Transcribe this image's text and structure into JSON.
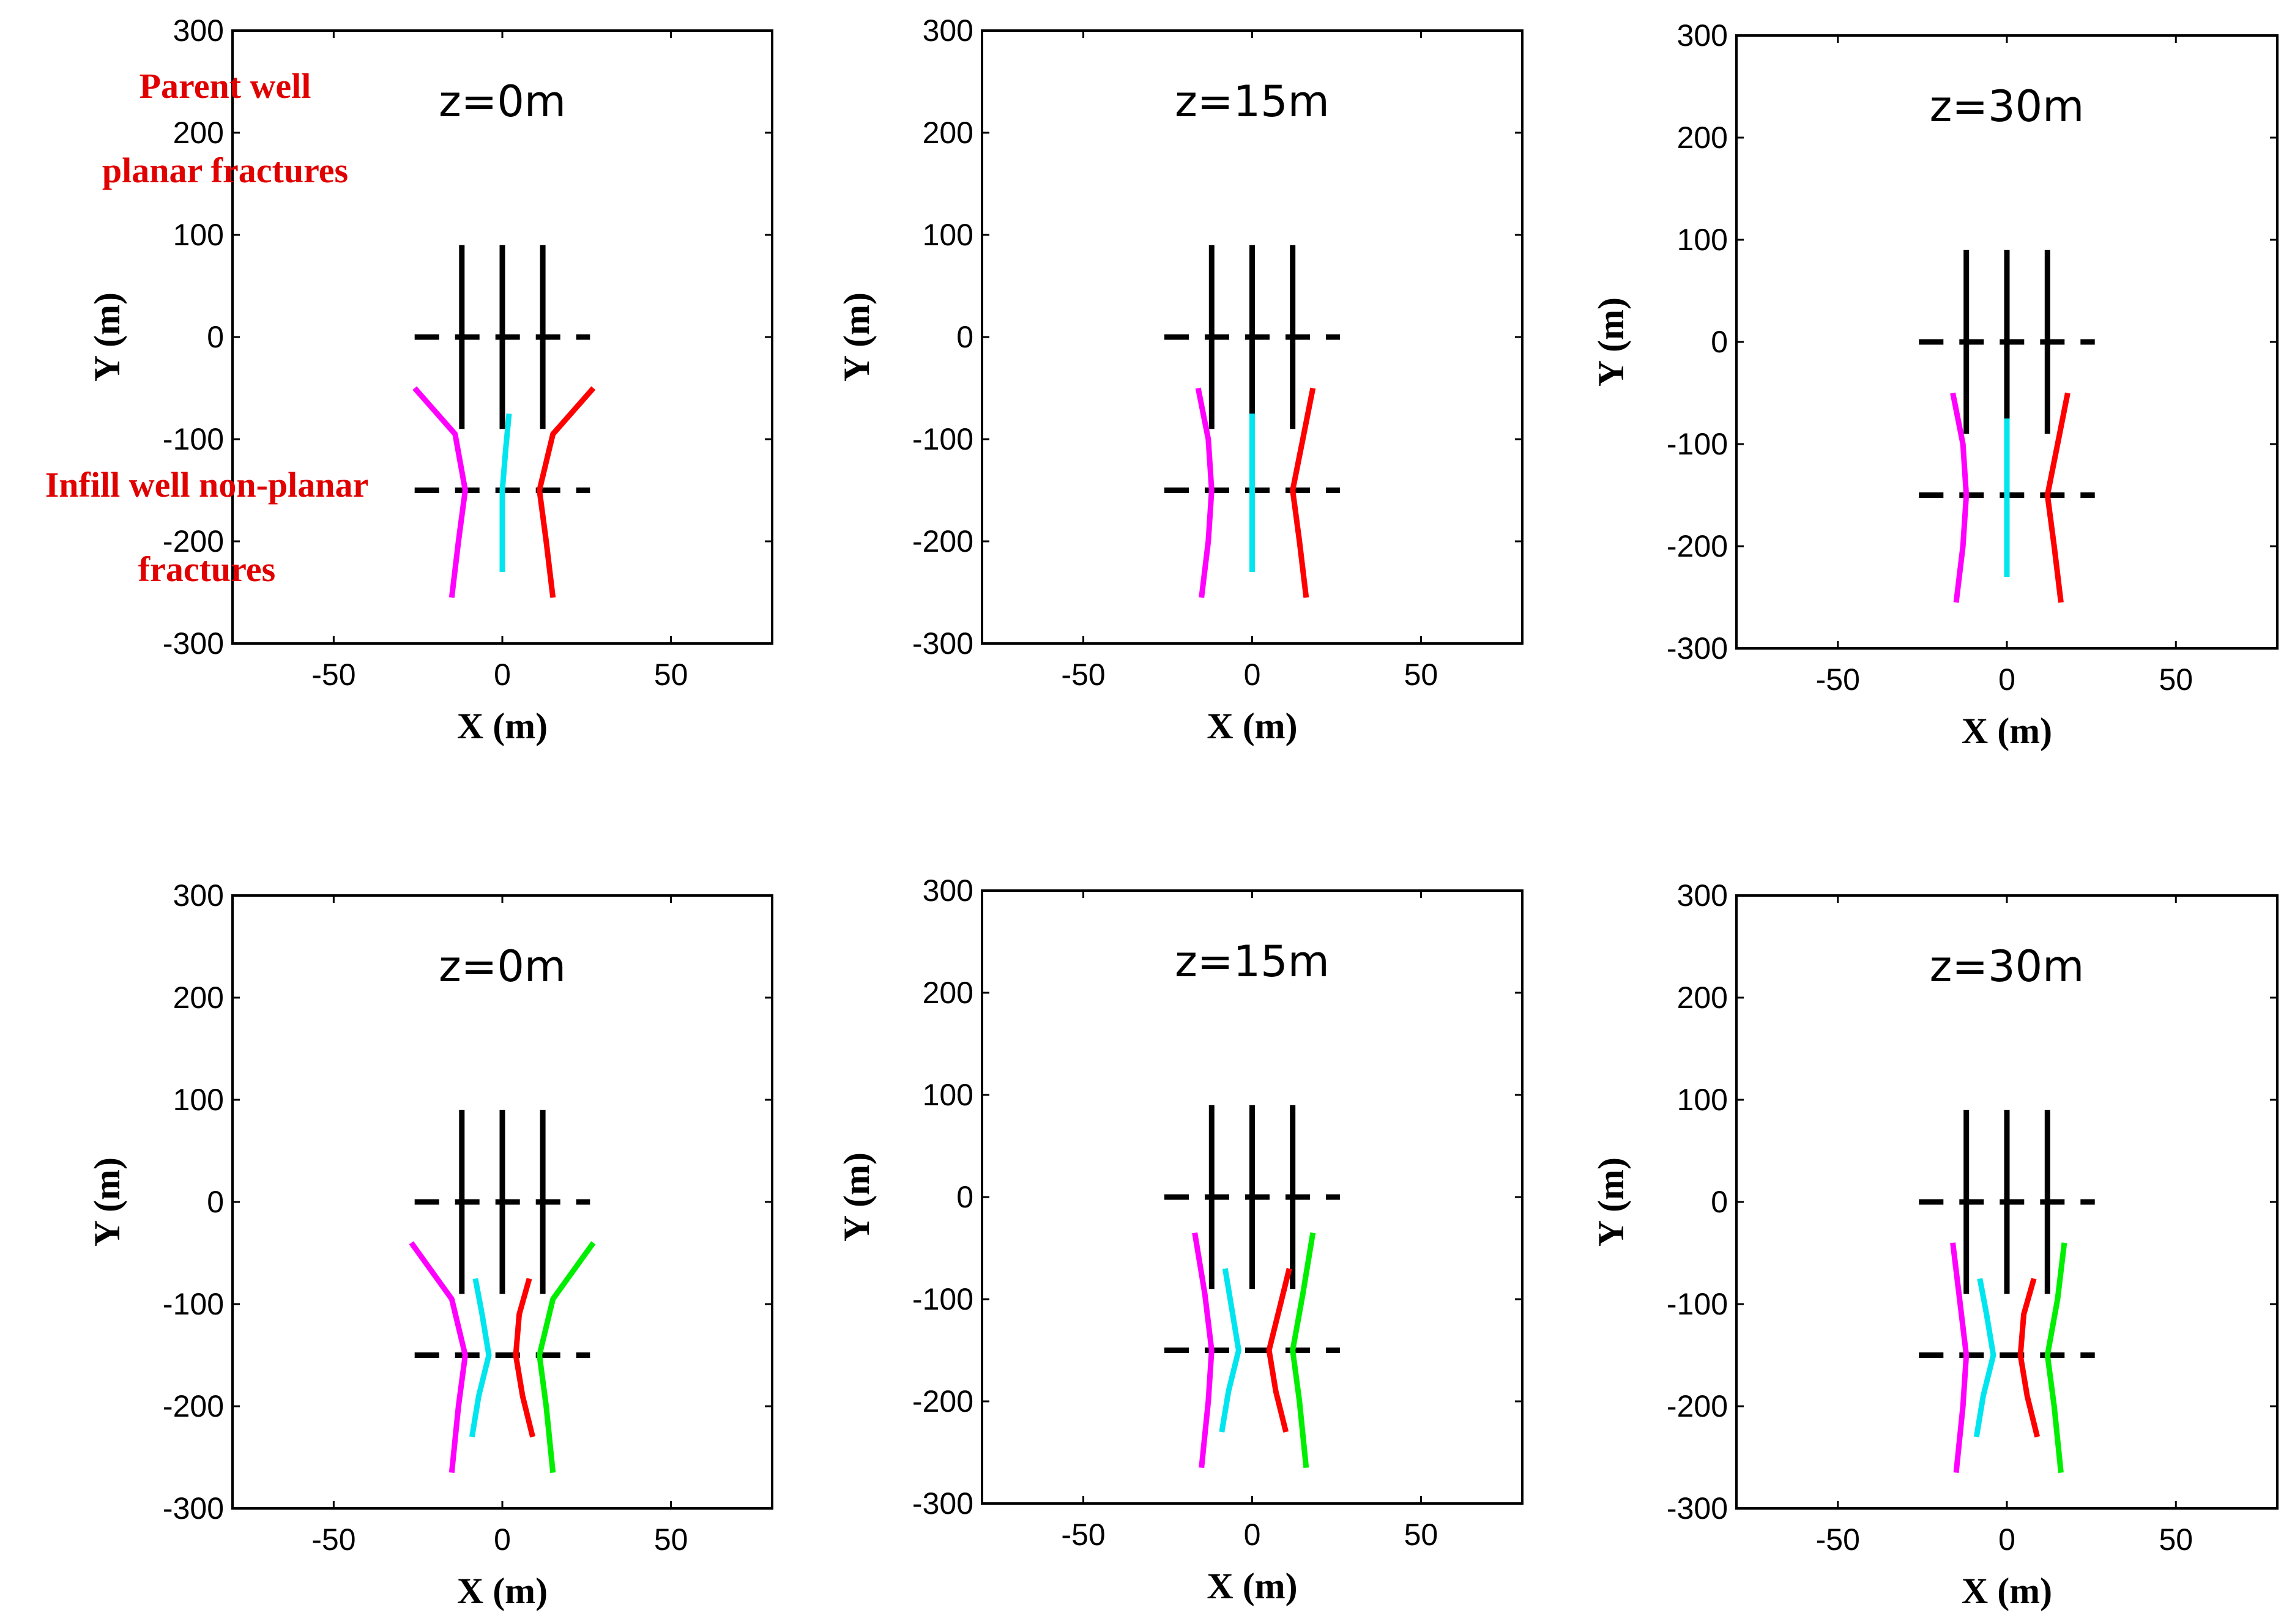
{
  "chart_data": [
    {
      "type": "line",
      "title": "z=0m",
      "xlabel": "X (m)",
      "ylabel": "Y (m)",
      "xlim": [
        -80,
        80
      ],
      "ylim": [
        -300,
        300
      ],
      "xticks": [
        -50,
        0,
        50
      ],
      "yticks": [
        300,
        200,
        100,
        0,
        -100,
        -200,
        -300
      ],
      "grid": false,
      "series": [
        {
          "name": "parent-well-fracture-1",
          "color": "#000000",
          "x": [
            -12,
            -12
          ],
          "y": [
            90,
            -90
          ]
        },
        {
          "name": "parent-well-fracture-2",
          "color": "#000000",
          "x": [
            0,
            0
          ],
          "y": [
            90,
            -90
          ]
        },
        {
          "name": "parent-well-fracture-3",
          "color": "#000000",
          "x": [
            12,
            12
          ],
          "y": [
            90,
            -90
          ]
        },
        {
          "name": "parent-wellbore",
          "color": "#000000",
          "dashed": true,
          "x": [
            -26,
            26
          ],
          "y": [
            0,
            0
          ]
        },
        {
          "name": "infill-wellbore",
          "color": "#000000",
          "dashed": true,
          "x": [
            -26,
            26
          ],
          "y": [
            -150,
            -150
          ]
        },
        {
          "name": "infill-fracture-magenta",
          "color": "#ff00ff",
          "x": [
            -26,
            -14,
            -11,
            -13,
            -15
          ],
          "y": [
            -50,
            -95,
            -150,
            -200,
            -255
          ]
        },
        {
          "name": "infill-fracture-cyan",
          "color": "#00e5ee",
          "x": [
            2,
            1,
            0,
            0,
            0
          ],
          "y": [
            -75,
            -110,
            -150,
            -190,
            -230
          ]
        },
        {
          "name": "infill-fracture-red",
          "color": "#ff0000",
          "x": [
            27,
            15,
            11,
            13,
            15
          ],
          "y": [
            -50,
            -95,
            -150,
            -200,
            -255
          ]
        }
      ]
    },
    {
      "type": "line",
      "title": "z=15m",
      "xlabel": "X (m)",
      "ylabel": "Y (m)",
      "xlim": [
        -80,
        80
      ],
      "ylim": [
        -300,
        300
      ],
      "xticks": [
        -50,
        0,
        50
      ],
      "yticks": [
        300,
        200,
        100,
        0,
        -100,
        -200,
        -300
      ],
      "grid": false,
      "series": [
        {
          "name": "parent-well-fracture-1",
          "color": "#000000",
          "x": [
            -12,
            -12
          ],
          "y": [
            90,
            -90
          ]
        },
        {
          "name": "parent-well-fracture-2",
          "color": "#000000",
          "x": [
            0,
            0
          ],
          "y": [
            90,
            -90
          ]
        },
        {
          "name": "parent-well-fracture-3",
          "color": "#000000",
          "x": [
            12,
            12
          ],
          "y": [
            90,
            -90
          ]
        },
        {
          "name": "parent-wellbore",
          "color": "#000000",
          "dashed": true,
          "x": [
            -26,
            26
          ],
          "y": [
            0,
            0
          ]
        },
        {
          "name": "infill-wellbore",
          "color": "#000000",
          "dashed": true,
          "x": [
            -26,
            26
          ],
          "y": [
            -150,
            -150
          ]
        },
        {
          "name": "infill-fracture-magenta",
          "color": "#ff00ff",
          "x": [
            -16,
            -13,
            -12,
            -13,
            -15
          ],
          "y": [
            -50,
            -100,
            -150,
            -200,
            -255
          ]
        },
        {
          "name": "infill-fracture-cyan",
          "color": "#00e5ee",
          "x": [
            0,
            0,
            0,
            0
          ],
          "y": [
            -75,
            -110,
            -190,
            -230
          ]
        },
        {
          "name": "infill-fracture-red",
          "color": "#ff0000",
          "x": [
            18,
            15,
            12,
            14,
            16
          ],
          "y": [
            -50,
            -100,
            -150,
            -200,
            -255
          ]
        }
      ]
    },
    {
      "type": "line",
      "title": "z=30m",
      "xlabel": "X (m)",
      "ylabel": "Y (m)",
      "xlim": [
        -80,
        80
      ],
      "ylim": [
        -300,
        300
      ],
      "xticks": [
        -50,
        0,
        50
      ],
      "yticks": [
        300,
        200,
        100,
        0,
        -100,
        -200,
        -300
      ],
      "grid": false,
      "series": [
        {
          "name": "parent-well-fracture-1",
          "color": "#000000",
          "x": [
            -12,
            -12
          ],
          "y": [
            90,
            -90
          ]
        },
        {
          "name": "parent-well-fracture-2",
          "color": "#000000",
          "x": [
            0,
            0
          ],
          "y": [
            90,
            -90
          ]
        },
        {
          "name": "parent-well-fracture-3",
          "color": "#000000",
          "x": [
            12,
            12
          ],
          "y": [
            90,
            -90
          ]
        },
        {
          "name": "parent-wellbore",
          "color": "#000000",
          "dashed": true,
          "x": [
            -26,
            26
          ],
          "y": [
            0,
            0
          ]
        },
        {
          "name": "infill-wellbore",
          "color": "#000000",
          "dashed": true,
          "x": [
            -26,
            26
          ],
          "y": [
            -150,
            -150
          ]
        },
        {
          "name": "infill-fracture-magenta",
          "color": "#ff00ff",
          "x": [
            -16,
            -13,
            -12,
            -13,
            -15
          ],
          "y": [
            -50,
            -100,
            -150,
            -200,
            -255
          ]
        },
        {
          "name": "infill-fracture-cyan",
          "color": "#00e5ee",
          "x": [
            0,
            0,
            0,
            0
          ],
          "y": [
            -75,
            -110,
            -190,
            -230
          ]
        },
        {
          "name": "infill-fracture-red",
          "color": "#ff0000",
          "x": [
            18,
            15,
            12,
            14,
            16
          ],
          "y": [
            -50,
            -100,
            -150,
            -200,
            -255
          ]
        }
      ]
    },
    {
      "type": "line",
      "title": "z=0m",
      "xlabel": "X (m)",
      "ylabel": "Y (m)",
      "xlim": [
        -80,
        80
      ],
      "ylim": [
        -300,
        300
      ],
      "xticks": [
        -50,
        0,
        50
      ],
      "yticks": [
        300,
        200,
        100,
        0,
        -100,
        -200,
        -300
      ],
      "grid": false,
      "series": [
        {
          "name": "parent-well-fracture-1",
          "color": "#000000",
          "x": [
            -12,
            -12
          ],
          "y": [
            90,
            -90
          ]
        },
        {
          "name": "parent-well-fracture-2",
          "color": "#000000",
          "x": [
            0,
            0
          ],
          "y": [
            90,
            -90
          ]
        },
        {
          "name": "parent-well-fracture-3",
          "color": "#000000",
          "x": [
            12,
            12
          ],
          "y": [
            90,
            -90
          ]
        },
        {
          "name": "parent-wellbore",
          "color": "#000000",
          "dashed": true,
          "x": [
            -26,
            26
          ],
          "y": [
            0,
            0
          ]
        },
        {
          "name": "infill-wellbore",
          "color": "#000000",
          "dashed": true,
          "x": [
            -26,
            26
          ],
          "y": [
            -150,
            -150
          ]
        },
        {
          "name": "infill-fracture-magenta",
          "color": "#ff00ff",
          "x": [
            -27,
            -15,
            -11,
            -13,
            -15
          ],
          "y": [
            -40,
            -95,
            -150,
            -200,
            -265
          ]
        },
        {
          "name": "infill-fracture-cyan",
          "color": "#00e5ee",
          "x": [
            -8,
            -6,
            -4,
            -7,
            -9
          ],
          "y": [
            -75,
            -110,
            -150,
            -190,
            -230
          ]
        },
        {
          "name": "infill-fracture-red",
          "color": "#ff0000",
          "x": [
            8,
            5,
            4,
            6,
            9
          ],
          "y": [
            -75,
            -110,
            -150,
            -190,
            -230
          ]
        },
        {
          "name": "infill-fracture-green",
          "color": "#00ee00",
          "x": [
            27,
            15,
            11,
            13,
            15
          ],
          "y": [
            -40,
            -95,
            -150,
            -200,
            -265
          ]
        }
      ]
    },
    {
      "type": "line",
      "title": "z=15m",
      "xlabel": "X (m)",
      "ylabel": "Y (m)",
      "xlim": [
        -80,
        80
      ],
      "ylim": [
        -300,
        300
      ],
      "xticks": [
        -50,
        0,
        50
      ],
      "yticks": [
        300,
        200,
        100,
        0,
        -100,
        -200,
        -300
      ],
      "grid": false,
      "series": [
        {
          "name": "parent-well-fracture-1",
          "color": "#000000",
          "x": [
            -12,
            -12
          ],
          "y": [
            90,
            -90
          ]
        },
        {
          "name": "parent-well-fracture-2",
          "color": "#000000",
          "x": [
            0,
            0
          ],
          "y": [
            90,
            -90
          ]
        },
        {
          "name": "parent-well-fracture-3",
          "color": "#000000",
          "x": [
            12,
            12
          ],
          "y": [
            90,
            -90
          ]
        },
        {
          "name": "parent-wellbore",
          "color": "#000000",
          "dashed": true,
          "x": [
            -26,
            26
          ],
          "y": [
            0,
            0
          ]
        },
        {
          "name": "infill-wellbore",
          "color": "#000000",
          "dashed": true,
          "x": [
            -26,
            26
          ],
          "y": [
            -150,
            -150
          ]
        },
        {
          "name": "infill-fracture-magenta",
          "color": "#ff00ff",
          "x": [
            -17,
            -14,
            -12,
            -13,
            -15
          ],
          "y": [
            -35,
            -95,
            -150,
            -200,
            -265
          ]
        },
        {
          "name": "infill-fracture-cyan",
          "color": "#00e5ee",
          "x": [
            -8,
            -6,
            -4,
            -7,
            -9
          ],
          "y": [
            -70,
            -110,
            -150,
            -190,
            -230
          ]
        },
        {
          "name": "infill-fracture-red",
          "color": "#ff0000",
          "x": [
            11,
            8,
            5,
            7,
            10
          ],
          "y": [
            -70,
            -110,
            -150,
            -190,
            -230
          ]
        },
        {
          "name": "infill-fracture-green",
          "color": "#00ee00",
          "x": [
            18,
            15,
            12,
            14,
            16
          ],
          "y": [
            -35,
            -95,
            -150,
            -200,
            -265
          ]
        }
      ]
    },
    {
      "type": "line",
      "title": "z=30m",
      "xlabel": "X (m)",
      "ylabel": "Y (m)",
      "xlim": [
        -80,
        80
      ],
      "ylim": [
        -300,
        300
      ],
      "xticks": [
        -50,
        0,
        50
      ],
      "yticks": [
        300,
        200,
        100,
        0,
        -100,
        -200,
        -300
      ],
      "grid": false,
      "series": [
        {
          "name": "parent-well-fracture-1",
          "color": "#000000",
          "x": [
            -12,
            -12
          ],
          "y": [
            90,
            -90
          ]
        },
        {
          "name": "parent-well-fracture-2",
          "color": "#000000",
          "x": [
            0,
            0
          ],
          "y": [
            90,
            -90
          ]
        },
        {
          "name": "parent-well-fracture-3",
          "color": "#000000",
          "x": [
            12,
            12
          ],
          "y": [
            90,
            -90
          ]
        },
        {
          "name": "parent-wellbore",
          "color": "#000000",
          "dashed": true,
          "x": [
            -26,
            26
          ],
          "y": [
            0,
            0
          ]
        },
        {
          "name": "infill-wellbore",
          "color": "#000000",
          "dashed": true,
          "x": [
            -26,
            26
          ],
          "y": [
            -150,
            -150
          ]
        },
        {
          "name": "infill-fracture-magenta",
          "color": "#ff00ff",
          "x": [
            -16,
            -14,
            -12,
            -13,
            -15
          ],
          "y": [
            -40,
            -95,
            -150,
            -200,
            -265
          ]
        },
        {
          "name": "infill-fracture-cyan",
          "color": "#00e5ee",
          "x": [
            -8,
            -6,
            -4,
            -7,
            -9
          ],
          "y": [
            -75,
            -110,
            -150,
            -190,
            -230
          ]
        },
        {
          "name": "infill-fracture-red",
          "color": "#ff0000",
          "x": [
            8,
            5,
            4,
            6,
            9
          ],
          "y": [
            -75,
            -110,
            -150,
            -190,
            -230
          ]
        },
        {
          "name": "infill-fracture-green",
          "color": "#00ee00",
          "x": [
            17,
            15,
            12,
            14,
            16
          ],
          "y": [
            -40,
            -95,
            -150,
            -200,
            -265
          ]
        }
      ]
    }
  ],
  "annotations": {
    "parent_line1": "Parent well",
    "parent_line2": "planar fractures",
    "infill_line1": "Infill well non-planar",
    "infill_line2": "fractures",
    "color": "#e00000"
  }
}
